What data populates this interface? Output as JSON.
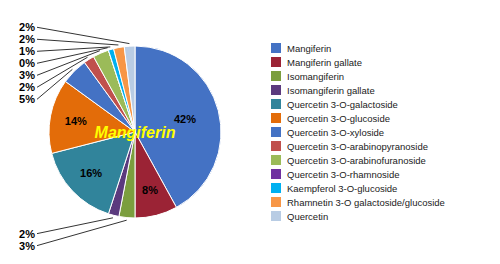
{
  "chart_data": {
    "type": "pie",
    "categories": [
      "Mangiferin",
      "Mangiferin gallate",
      "Isomangiferin",
      "Isomangiferin gallate",
      "Quercetin 3-O-galactoside",
      "Quercetin 3-O-glucoside",
      "Quercetin 3-O-xyloside",
      "Quercetin 3-O-arabinopyranoside",
      "Quercetin 3-O-arabinofuranoside",
      "Quercetin 3-O-rhamnoside",
      "Kaempferol 3-O-glucoside",
      "Rhamnetin 3-O galactoside/glucoside",
      "Quercetin"
    ],
    "values": [
      42,
      8,
      3,
      2,
      16,
      14,
      5,
      2,
      3,
      0,
      1,
      2,
      2
    ],
    "value_labels": [
      "42%",
      "8%",
      "3%",
      "2%",
      "16%",
      "14%",
      "5%",
      "2%",
      "3%",
      "0%",
      "1%",
      "2%",
      "2%"
    ],
    "colors": [
      "#4472C4",
      "#9B2335",
      "#7B9E3E",
      "#5B3A7E",
      "#31849B",
      "#E36C09",
      "#4472C4",
      "#C0504D",
      "#9BBB59",
      "#7030A0",
      "#00B0F0",
      "#F79646",
      "#B8CCE4"
    ],
    "data_labels": true,
    "legend": "right",
    "annotations": [
      {
        "text": "Mangiferin",
        "color": "#FFFF00"
      }
    ]
  }
}
